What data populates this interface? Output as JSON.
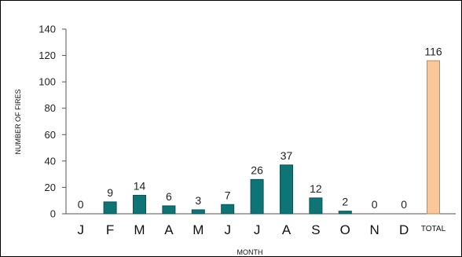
{
  "chart_data": {
    "type": "bar",
    "categories": [
      "J",
      "F",
      "M",
      "A",
      "M",
      "J",
      "J",
      "A",
      "S",
      "O",
      "N",
      "D",
      "TOTAL"
    ],
    "values": [
      0,
      9,
      14,
      6,
      3,
      7,
      26,
      37,
      12,
      2,
      0,
      0,
      116
    ],
    "data_labels": [
      "0",
      "9",
      "14",
      "6",
      "3",
      "7",
      "26",
      "37",
      "12",
      "2",
      "0",
      "0",
      "116"
    ],
    "xlabel": "MONTH",
    "ylabel": "NUMBER OF FIRES",
    "ylim": [
      0,
      140
    ],
    "yticks": [
      "0",
      "20",
      "40",
      "60",
      "80",
      "100",
      "120",
      "140"
    ],
    "grid": false,
    "colors": {
      "month_bar": "#0f7475",
      "total_bar": "#f9c79a",
      "total_border": "#c8844a"
    }
  }
}
